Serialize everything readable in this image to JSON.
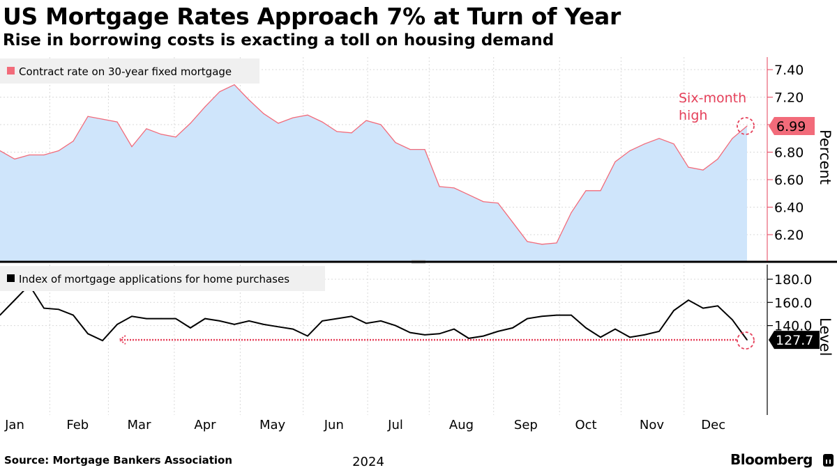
{
  "title": "US Mortgage Rates Approach 7% at Turn of Year",
  "subtitle": "Rise in borrowing costs is exacting a toll on housing demand",
  "source": "Source: Mortgage Bankers Association",
  "brand": "Bloomberg",
  "colors": {
    "rate_line": "#f26b7a",
    "rate_fill": "#cfe5fb",
    "index_line": "#000000",
    "highlight": "#e5405a",
    "grid": "#d9d9d9"
  },
  "chart_data": [
    {
      "type": "area",
      "legend": "Contract rate on 30-year fixed mortgage",
      "ylabel": "Percent",
      "ylim": [
        6.0,
        7.5
      ],
      "yticks": [
        "7.40",
        "7.20",
        "7.00",
        "6.80",
        "6.60",
        "6.40",
        "6.20"
      ],
      "ytick_values": [
        7.4,
        7.2,
        7.0,
        6.8,
        6.6,
        6.4,
        6.2
      ],
      "x_weeks": [
        0,
        1,
        2,
        3,
        4,
        5,
        6,
        7,
        8,
        9,
        10,
        11,
        12,
        13,
        14,
        15,
        16,
        17,
        18,
        19,
        20,
        21,
        22,
        23,
        24,
        25,
        26,
        27,
        28,
        29,
        30,
        31,
        32,
        33,
        34,
        35,
        36,
        37,
        38,
        39,
        40,
        41,
        42,
        43,
        44,
        45,
        46,
        47,
        48,
        49,
        50,
        51
      ],
      "values": [
        6.81,
        6.75,
        6.78,
        6.78,
        6.81,
        6.88,
        7.06,
        7.04,
        7.02,
        6.84,
        6.97,
        6.93,
        6.91,
        7.01,
        7.13,
        7.24,
        7.29,
        7.18,
        7.08,
        7.01,
        7.05,
        7.07,
        7.02,
        6.95,
        6.94,
        7.03,
        7.0,
        6.87,
        6.82,
        6.82,
        6.55,
        6.54,
        6.49,
        6.44,
        6.43,
        6.29,
        6.15,
        6.13,
        6.14,
        6.36,
        6.52,
        6.52,
        6.73,
        6.81,
        6.86,
        6.9,
        6.86,
        6.69,
        6.67,
        6.75,
        6.9,
        6.99
      ],
      "last_value_label": "6.99",
      "annotation": [
        "Six-month",
        "high"
      ]
    },
    {
      "type": "line",
      "legend": "Index of mortgage applications for home purchases",
      "ylabel": "Level",
      "ylim": [
        120,
        185
      ],
      "yticks": [
        "180.0",
        "160.0",
        "140.0"
      ],
      "ytick_values": [
        180,
        160,
        140
      ],
      "x_weeks": [
        0,
        1,
        2,
        3,
        4,
        5,
        6,
        7,
        8,
        9,
        10,
        11,
        12,
        13,
        14,
        15,
        16,
        17,
        18,
        19,
        20,
        21,
        22,
        23,
        24,
        25,
        26,
        27,
        28,
        29,
        30,
        31,
        32,
        33,
        34,
        35,
        36,
        37,
        38,
        39,
        40,
        41,
        42,
        43,
        44,
        45,
        46,
        47,
        48,
        49,
        50,
        51
      ],
      "values": [
        149,
        162,
        175,
        155,
        154,
        149,
        133,
        127,
        141,
        148,
        146,
        146,
        146,
        138,
        146,
        144,
        141,
        144,
        141,
        139,
        137,
        131,
        144,
        146,
        148,
        142,
        144,
        140,
        134,
        132,
        133,
        137,
        129,
        131,
        135,
        138,
        146,
        148,
        149,
        149,
        138,
        130,
        137,
        130,
        132,
        135,
        153,
        162,
        155,
        157,
        145,
        127.7
      ],
      "last_value_label": "127.7",
      "reference_value": 127.7,
      "reference_start_week": 8
    }
  ],
  "x_axis": {
    "months": [
      "Jan",
      "Feb",
      "Mar",
      "Apr",
      "May",
      "Jun",
      "Jul",
      "Aug",
      "Sep",
      "Oct",
      "Nov",
      "Dec"
    ],
    "month_label_weeks": [
      1.0,
      5.3,
      9.5,
      14.0,
      18.6,
      22.8,
      27.0,
      31.5,
      35.9,
      40.0,
      44.5,
      48.7
    ],
    "month_boundary_weeks": [
      3.4,
      7.4,
      11.9,
      16.4,
      20.7,
      25.1,
      29.3,
      33.7,
      38.2,
      42.4,
      46.7
    ],
    "year": "2024"
  }
}
